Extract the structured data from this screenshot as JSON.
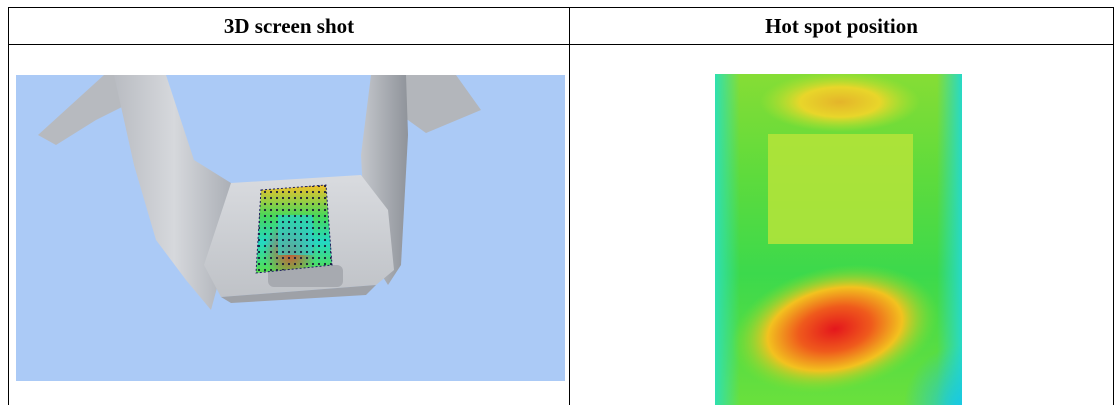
{
  "table": {
    "headers": [
      "3D screen shot",
      "Hot spot position"
    ]
  },
  "colors": {
    "sky_background": "#abcaf6",
    "part_grey": "#c9cbd0",
    "hot": "#e8261c",
    "cool": "#1fd9c4",
    "mid": "#3fdc4a",
    "warm": "#f0e326"
  }
}
